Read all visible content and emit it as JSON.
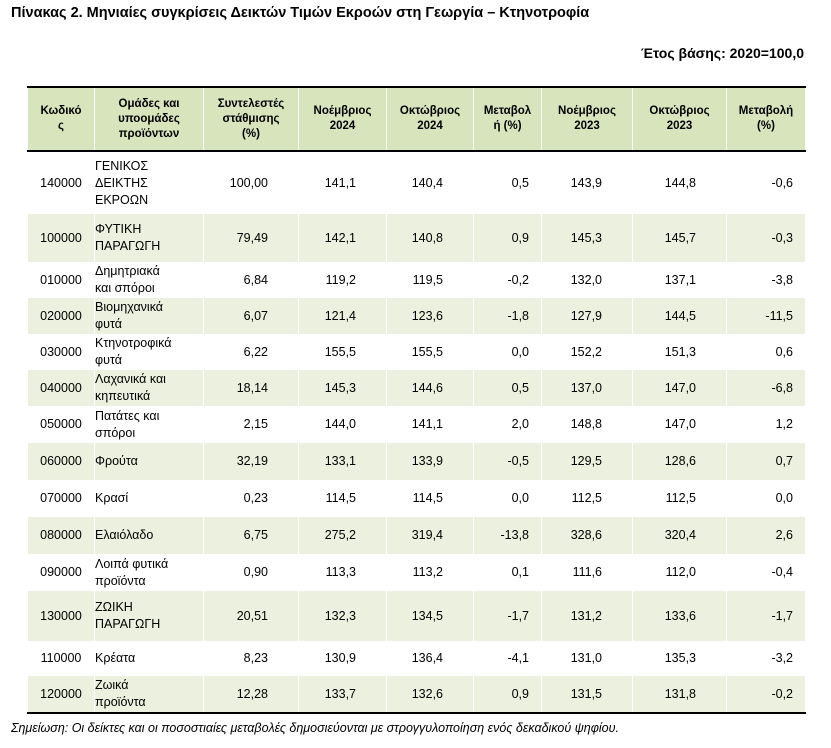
{
  "title": "Πίνακας 2. Μηνιαίες συγκρίσεις Δεικτών Τιμών Εκροών στη Γεωργία – Κτηνοτροφία",
  "base_year": "Έτος βάσης: 2020=100,0",
  "headers": [
    [
      "Κωδικό",
      "ς"
    ],
    [
      "Ομάδες και",
      "υποομάδες",
      "προϊόντων"
    ],
    [
      "Συντελεστές",
      "στάθμισης",
      "(%)"
    ],
    [
      "Νοέμβριος",
      "2024"
    ],
    [
      "Οκτώβριος",
      "2024"
    ],
    [
      "Μεταβολ",
      "ή (%)"
    ],
    [
      "Νοέμβριος",
      "2023"
    ],
    [
      "Οκτώβριος",
      "2023"
    ],
    [
      "Μεταβολή",
      "(%)"
    ]
  ],
  "rows": [
    {
      "code": "140000",
      "name": [
        "ΓΕΝΙΚΟΣ",
        "ΔΕΙΚΤΗΣ",
        "ΕΚΡΟΩΝ"
      ],
      "weight": "100,00",
      "nov2024": "141,1",
      "oct2024": "140,4",
      "change2024": "0,5",
      "nov2023": "143,9",
      "oct2023": "144,8",
      "change2023": "-0,6",
      "h": 63
    },
    {
      "code": "100000",
      "name": [
        "ΦΥΤΙΚΗ",
        "ΠΑΡΑΓΩΓΗ"
      ],
      "weight": "79,49",
      "nov2024": "142,1",
      "oct2024": "140,8",
      "change2024": "0,9",
      "nov2023": "145,3",
      "oct2023": "145,7",
      "change2023": "-0,3",
      "h": 48
    },
    {
      "code": "010000",
      "name": [
        "Δημητριακά",
        "και σπόροι"
      ],
      "weight": "6,84",
      "nov2024": "119,2",
      "oct2024": "119,5",
      "change2024": "-0,2",
      "nov2023": "132,0",
      "oct2023": "137,1",
      "change2023": "-3,8",
      "h": 36
    },
    {
      "code": "020000",
      "name": [
        "Βιομηχανικά",
        "φυτά"
      ],
      "weight": "6,07",
      "nov2024": "121,4",
      "oct2024": "123,6",
      "change2024": "-1,8",
      "nov2023": "127,9",
      "oct2023": "144,5",
      "change2023": "-11,5",
      "h": 36
    },
    {
      "code": "030000",
      "name": [
        "Κτηνοτροφικά",
        "φυτά"
      ],
      "weight": "6,22",
      "nov2024": "155,5",
      "oct2024": "155,5",
      "change2024": "0,0",
      "nov2023": "152,2",
      "oct2023": "151,3",
      "change2023": "0,6",
      "h": 36
    },
    {
      "code": "040000",
      "name": [
        "Λαχανικά και",
        "κηπευτικά"
      ],
      "weight": "18,14",
      "nov2024": "145,3",
      "oct2024": "144,6",
      "change2024": "0,5",
      "nov2023": "137,0",
      "oct2023": "147,0",
      "change2023": "-6,8",
      "h": 36
    },
    {
      "code": "050000",
      "name": [
        "Πατάτες και",
        "σπόροι"
      ],
      "weight": "2,15",
      "nov2024": "144,0",
      "oct2024": "141,1",
      "change2024": "2,0",
      "nov2023": "148,8",
      "oct2023": "147,0",
      "change2023": "1,2",
      "h": 37
    },
    {
      "code": "060000",
      "name": [
        "Φρούτα"
      ],
      "weight": "32,19",
      "nov2024": "133,1",
      "oct2024": "133,9",
      "change2024": "-0,5",
      "nov2023": "129,5",
      "oct2023": "128,6",
      "change2023": "0,7",
      "h": 37
    },
    {
      "code": "070000",
      "name": [
        "Κρασί"
      ],
      "weight": "0,23",
      "nov2024": "114,5",
      "oct2024": "114,5",
      "change2024": "0,0",
      "nov2023": "112,5",
      "oct2023": "112,5",
      "change2023": "0,0",
      "h": 37
    },
    {
      "code": "080000",
      "name": [
        "Ελαιόλαδο"
      ],
      "weight": "6,75",
      "nov2024": "275,2",
      "oct2024": "319,4",
      "change2024": "-13,8",
      "nov2023": "328,6",
      "oct2023": "320,4",
      "change2023": "2,6",
      "h": 37
    },
    {
      "code": "090000",
      "name": [
        "Λοιπά φυτικά",
        "προϊόντα"
      ],
      "weight": "0,90",
      "nov2024": "113,3",
      "oct2024": "113,2",
      "change2024": "0,1",
      "nov2023": "111,6",
      "oct2023": "112,0",
      "change2023": "-0,4",
      "h": 37
    },
    {
      "code": "130000",
      "name": [
        "ΖΩΙΚΗ",
        "ΠΑΡΑΓΩΓΗ"
      ],
      "weight": "20,51",
      "nov2024": "132,3",
      "oct2024": "134,5",
      "change2024": "-1,7",
      "nov2023": "131,2",
      "oct2023": "133,6",
      "change2023": "-1,7",
      "h": 50
    },
    {
      "code": "110000",
      "name": [
        "Κρέατα"
      ],
      "weight": "8,23",
      "nov2024": "130,9",
      "oct2024": "136,4",
      "change2024": "-4,1",
      "nov2023": "131,0",
      "oct2023": "135,3",
      "change2023": "-3,2",
      "h": 35
    },
    {
      "code": "120000",
      "name": [
        "Ζωικά",
        "προϊόντα"
      ],
      "weight": "12,28",
      "nov2024": "133,7",
      "oct2024": "132,6",
      "change2024": "0,9",
      "nov2023": "131,5",
      "oct2023": "131,8",
      "change2023": "-0,2",
      "h": 37
    }
  ],
  "note": "Σημείωση: Οι δείκτες και οι ποσοστιαίες μεταβολές δημοσιεύονται με στρογγυλοποίηση ενός δεκαδικού ψηφίου."
}
